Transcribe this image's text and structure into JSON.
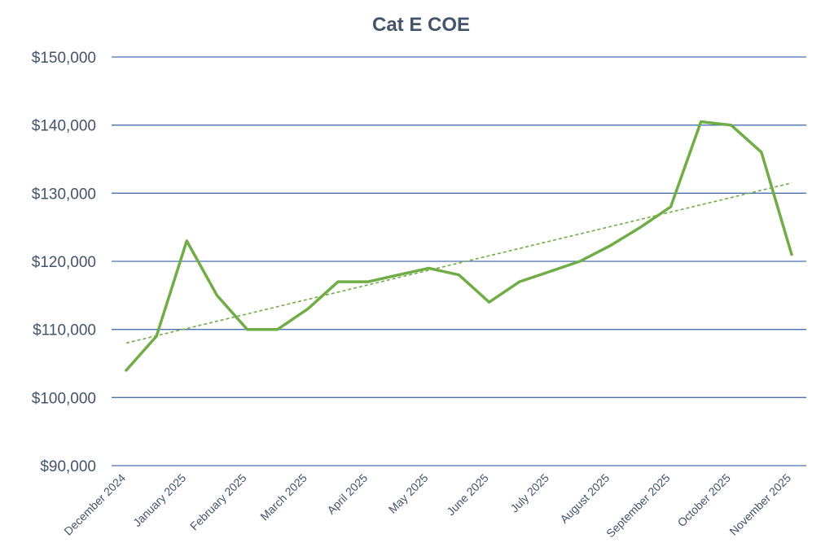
{
  "chart_data": {
    "type": "line",
    "title": "Cat E COE",
    "xlabel": "",
    "ylabel": "",
    "ylim": [
      90000,
      150000
    ],
    "yticks": [
      90000,
      100000,
      110000,
      120000,
      130000,
      140000,
      150000
    ],
    "ytick_labels": [
      "$90,000",
      "$100,000",
      "$110,000",
      "$120,000",
      "$130,000",
      "$140,000",
      "$150,000"
    ],
    "xtick_labels": [
      "December 2024",
      "January 2025",
      "February 2025",
      "March 2025",
      "April 2025",
      "May 2025",
      "June 2025",
      "July 2025",
      "August 2025",
      "September 2025",
      "October 2025",
      "November 2025"
    ],
    "series": [
      {
        "values": [
          104000,
          109000,
          123000,
          115000,
          110000,
          110000,
          113000,
          117000,
          117000,
          118000,
          119000,
          118000,
          114000,
          117000,
          118500,
          120000,
          122300,
          125000,
          128000,
          140500,
          140000,
          136000,
          121000
        ],
        "color": "#70ad47"
      }
    ],
    "trendline": {
      "type": "linear",
      "start": 108000,
      "end": 131500,
      "style": "dashed",
      "color": "#70ad47"
    },
    "grid": true,
    "legend": "none"
  }
}
